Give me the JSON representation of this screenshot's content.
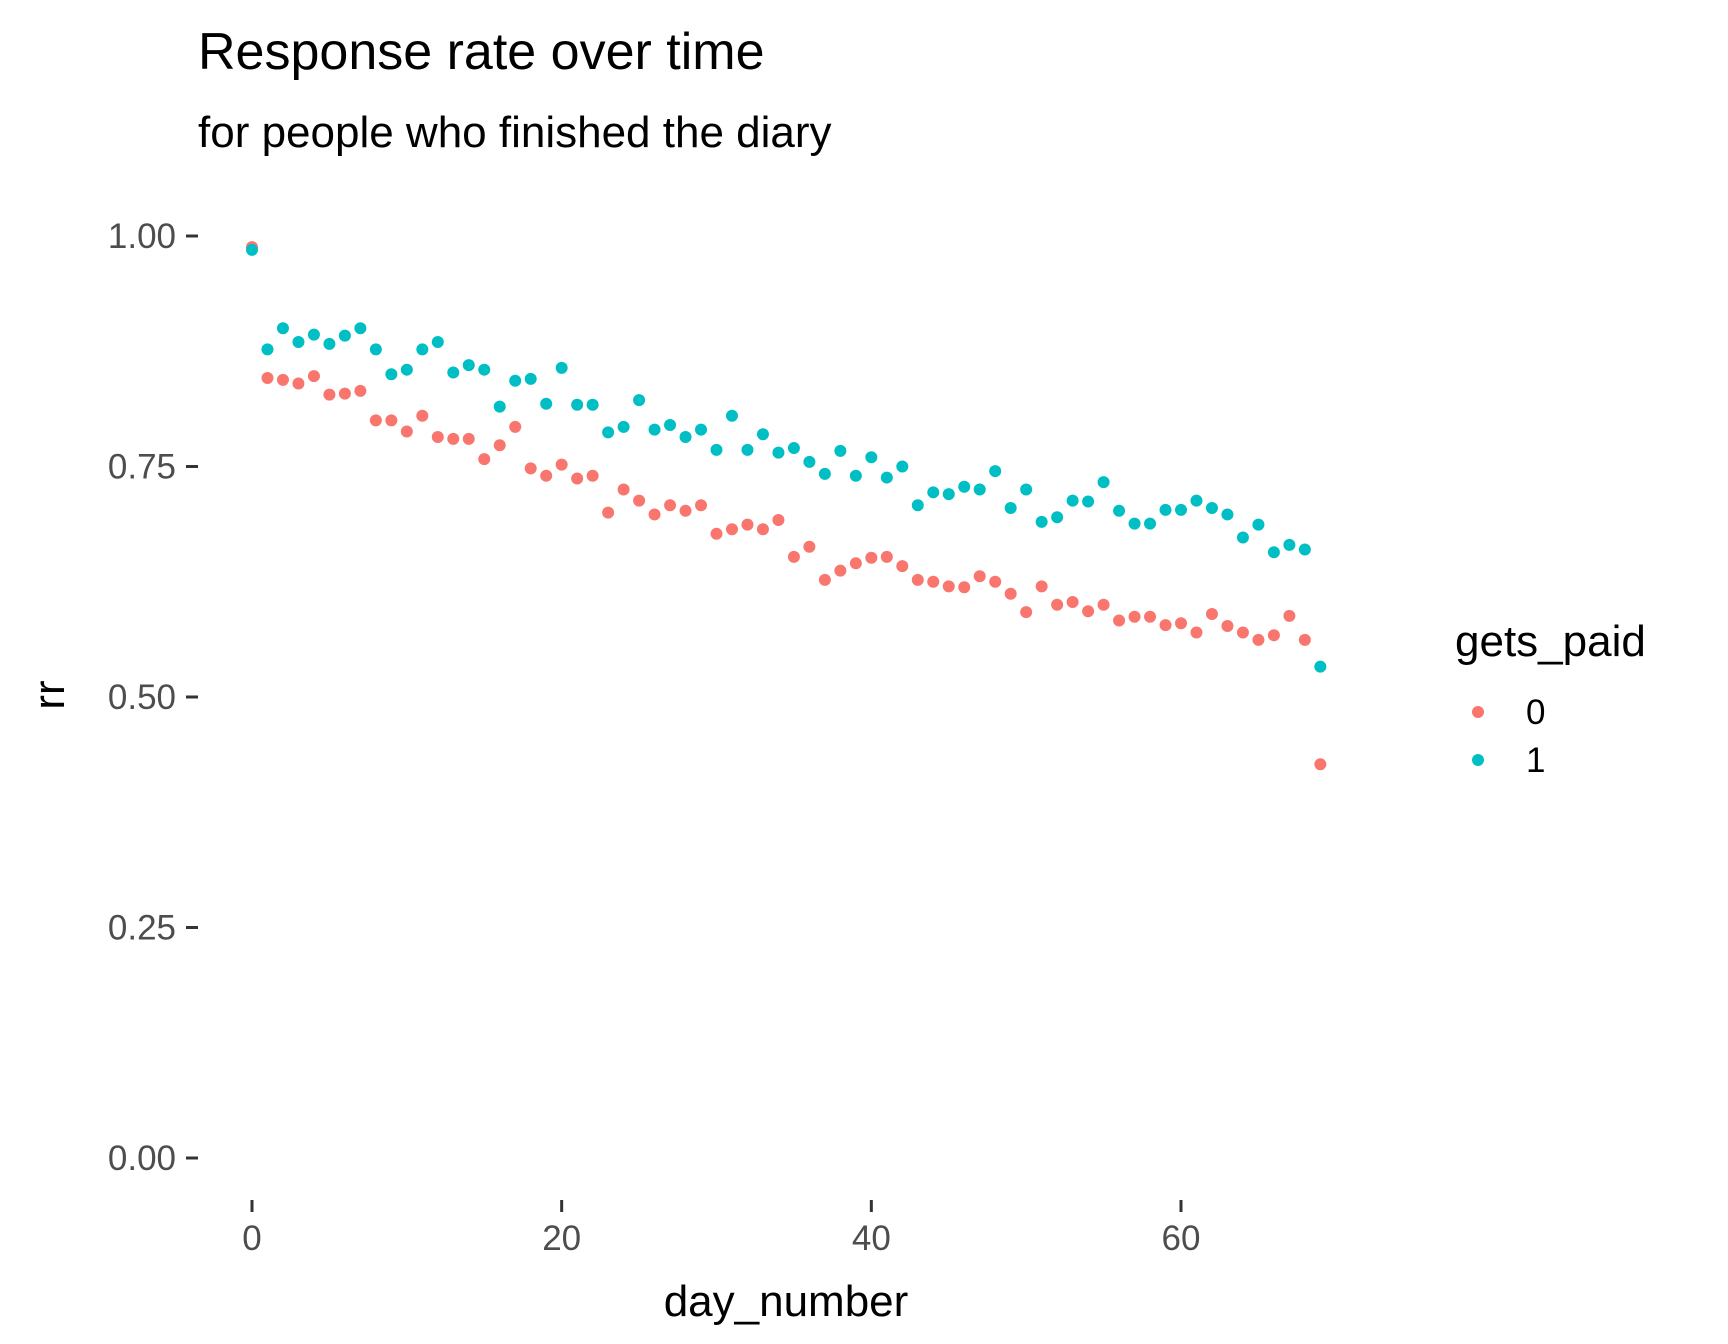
{
  "chart_data": {
    "type": "scatter",
    "title": "Response rate over time",
    "subtitle": "for people who finished the diary",
    "xlabel": "day_number",
    "ylabel": "rr",
    "xlim": [
      -1,
      70
    ],
    "ylim": [
      -0.03,
      1.03
    ],
    "x_ticks": [
      0,
      20,
      40,
      60
    ],
    "x_tick_labels": [
      "0",
      "20",
      "40",
      "60"
    ],
    "y_ticks": [
      0,
      0.25,
      0.5,
      0.75,
      1.0
    ],
    "y_tick_labels": [
      "0.00",
      "0.25",
      "0.50",
      "0.75",
      "1.00"
    ],
    "grid": false,
    "legend": {
      "title": "gets_paid",
      "placement": "right"
    },
    "series": [
      {
        "name": "0",
        "color": "#F8766D",
        "x": [
          0,
          1,
          2,
          3,
          4,
          5,
          6,
          7,
          8,
          9,
          10,
          11,
          12,
          13,
          14,
          15,
          16,
          17,
          18,
          19,
          20,
          21,
          22,
          23,
          24,
          25,
          26,
          27,
          28,
          29,
          30,
          31,
          32,
          33,
          34,
          35,
          36,
          37,
          38,
          39,
          40,
          41,
          42,
          43,
          44,
          45,
          46,
          47,
          48,
          49,
          50,
          51,
          52,
          53,
          54,
          55,
          56,
          57,
          58,
          59,
          60,
          61,
          62,
          63,
          64,
          65,
          66,
          67,
          68,
          69
        ],
        "y": [
          0.988,
          0.846,
          0.844,
          0.84,
          0.848,
          0.828,
          0.829,
          0.832,
          0.8,
          0.8,
          0.788,
          0.805,
          0.782,
          0.78,
          0.78,
          0.758,
          0.773,
          0.793,
          0.748,
          0.74,
          0.752,
          0.737,
          0.74,
          0.7,
          0.725,
          0.713,
          0.698,
          0.708,
          0.702,
          0.708,
          0.677,
          0.682,
          0.687,
          0.682,
          0.692,
          0.652,
          0.663,
          0.627,
          0.637,
          0.645,
          0.651,
          0.652,
          0.642,
          0.627,
          0.625,
          0.62,
          0.619,
          0.631,
          0.625,
          0.612,
          0.592,
          0.62,
          0.6,
          0.603,
          0.593,
          0.6,
          0.583,
          0.587,
          0.587,
          0.578,
          0.58,
          0.57,
          0.59,
          0.577,
          0.57,
          0.562,
          0.567,
          0.588,
          0.562,
          0.427
        ]
      },
      {
        "name": "1",
        "color": "#00BFC4",
        "x": [
          0,
          1,
          2,
          3,
          4,
          5,
          6,
          7,
          8,
          9,
          10,
          11,
          12,
          13,
          14,
          15,
          16,
          17,
          18,
          19,
          20,
          21,
          22,
          23,
          24,
          25,
          26,
          27,
          28,
          29,
          30,
          31,
          32,
          33,
          34,
          35,
          36,
          37,
          38,
          39,
          40,
          41,
          42,
          43,
          44,
          45,
          46,
          47,
          48,
          49,
          50,
          51,
          52,
          53,
          54,
          55,
          56,
          57,
          58,
          59,
          60,
          61,
          62,
          63,
          64,
          65,
          66,
          67,
          68,
          69
        ],
        "y": [
          0.985,
          0.877,
          0.9,
          0.885,
          0.893,
          0.883,
          0.892,
          0.9,
          0.877,
          0.85,
          0.855,
          0.877,
          0.885,
          0.852,
          0.86,
          0.855,
          0.815,
          0.843,
          0.845,
          0.818,
          0.857,
          0.817,
          0.817,
          0.787,
          0.793,
          0.822,
          0.79,
          0.795,
          0.782,
          0.79,
          0.768,
          0.805,
          0.768,
          0.785,
          0.765,
          0.77,
          0.755,
          0.742,
          0.767,
          0.74,
          0.76,
          0.738,
          0.75,
          0.708,
          0.722,
          0.72,
          0.728,
          0.725,
          0.745,
          0.705,
          0.725,
          0.69,
          0.695,
          0.713,
          0.712,
          0.733,
          0.702,
          0.688,
          0.688,
          0.703,
          0.703,
          0.713,
          0.705,
          0.698,
          0.673,
          0.687,
          0.657,
          0.665,
          0.66,
          0.533
        ]
      }
    ]
  }
}
